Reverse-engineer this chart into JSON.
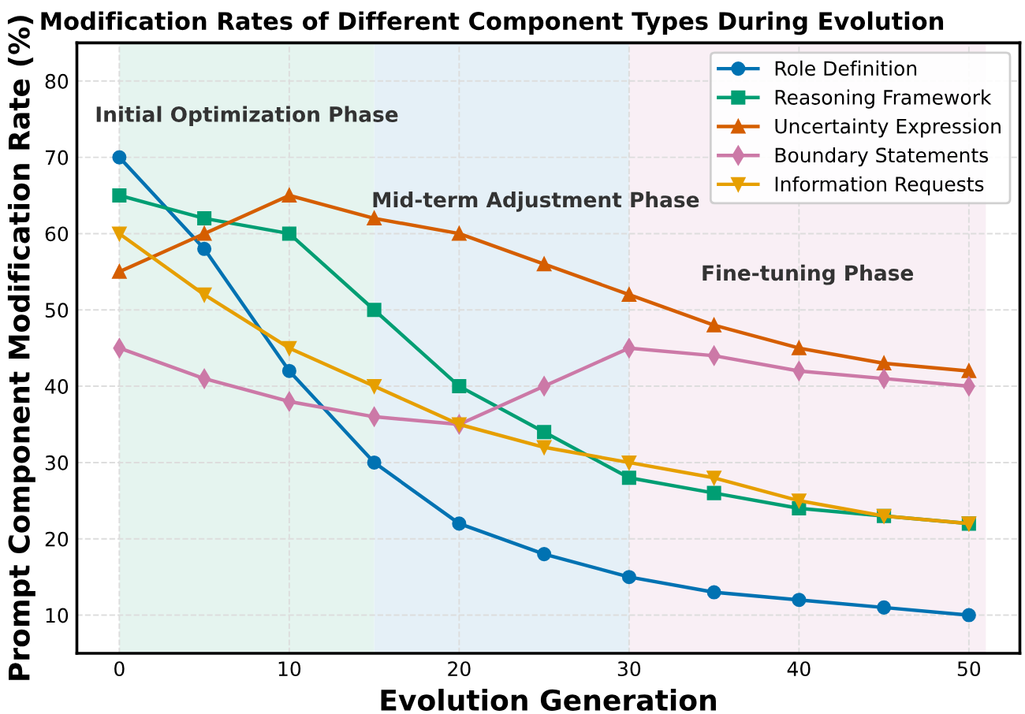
{
  "chart_data": {
    "type": "line",
    "title": "Modification Rates of Different Component Types During Evolution",
    "xlabel": "Evolution Generation",
    "ylabel": "Prompt Component Modification Rate (%)",
    "x": [
      0,
      5,
      10,
      15,
      20,
      25,
      30,
      35,
      40,
      45,
      50
    ],
    "series": [
      {
        "name": "Role Definition",
        "color": "#0072b2",
        "marker": "circle",
        "values": [
          70,
          58,
          42,
          30,
          22,
          18,
          15,
          13,
          12,
          11,
          10
        ]
      },
      {
        "name": "Reasoning Framework",
        "color": "#009e73",
        "marker": "square",
        "values": [
          65,
          62,
          60,
          50,
          40,
          34,
          28,
          26,
          24,
          23,
          22
        ]
      },
      {
        "name": "Uncertainty Expression",
        "color": "#d55e00",
        "marker": "triangle",
        "values": [
          55,
          60,
          65,
          62,
          60,
          56,
          52,
          48,
          45,
          43,
          42
        ]
      },
      {
        "name": "Boundary Statements",
        "color": "#cc79a7",
        "marker": "diamond",
        "values": [
          45,
          41,
          38,
          36,
          35,
          40,
          45,
          44,
          42,
          41,
          40
        ]
      },
      {
        "name": "Information Requests",
        "color": "#e69f00",
        "marker": "triangle_down",
        "values": [
          60,
          52,
          45,
          40,
          35,
          32,
          30,
          28,
          25,
          23,
          22
        ]
      }
    ],
    "bands": [
      {
        "axis": "x",
        "from": 0,
        "to": 15,
        "label": "Initial Optimization Phase",
        "color": "#e5f4ef"
      },
      {
        "axis": "x",
        "from": 15,
        "to": 30,
        "label": "Mid-term Adjustment Phase",
        "color": "#e5f0f7"
      },
      {
        "axis": "x",
        "from": 30,
        "to": 51,
        "label": "Fine-tuning Phase",
        "color": "#f9eff5"
      }
    ],
    "xlim": [
      -2.5,
      53
    ],
    "ylim": [
      5,
      85
    ],
    "xticks": [
      0,
      10,
      20,
      30,
      40,
      50
    ],
    "yticks": [
      10,
      20,
      30,
      40,
      50,
      60,
      70,
      80
    ],
    "grid": true,
    "legend": "top right",
    "line_style": "solid"
  }
}
